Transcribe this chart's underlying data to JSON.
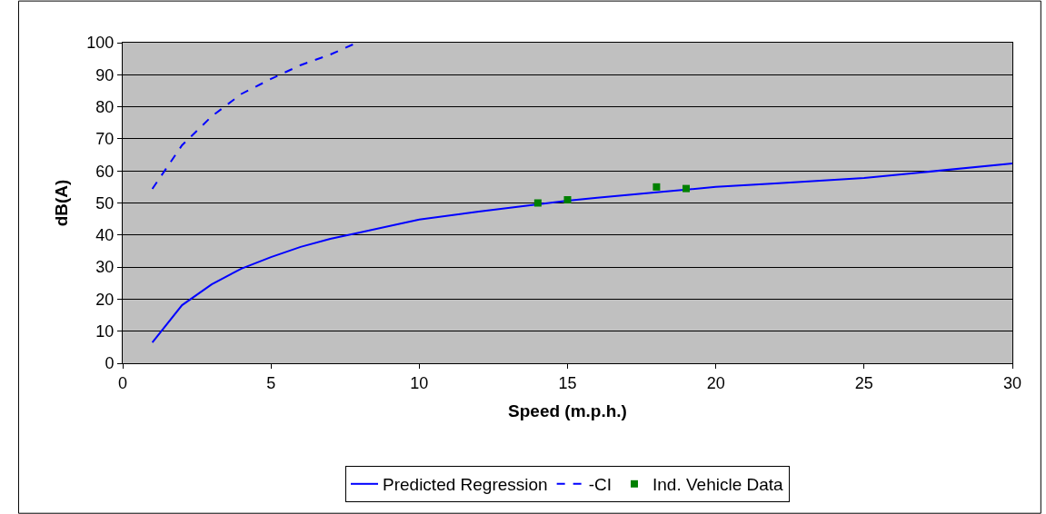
{
  "chart_data": {
    "type": "line",
    "xlabel": "Speed (m.p.h.)",
    "ylabel": "dB(A)",
    "xlim": [
      0,
      30
    ],
    "xticks": [
      0,
      5,
      10,
      15,
      20,
      25,
      30
    ],
    "ylim": [
      0,
      100
    ],
    "yticks": [
      0,
      10,
      20,
      30,
      40,
      50,
      60,
      70,
      80,
      90,
      100
    ],
    "grid": "y",
    "legend": "bottom",
    "series": [
      {
        "name": "Predicted Regression",
        "color": "#0000ff",
        "line_style": "solid",
        "marker": "none",
        "x": [
          1,
          2,
          3,
          4,
          5,
          6,
          7,
          8,
          10,
          12,
          14,
          15,
          16,
          18,
          20,
          22,
          25,
          30
        ],
        "values": [
          6.5,
          18.1,
          24.6,
          29.5,
          33.1,
          36.3,
          38.8,
          40.8,
          44.8,
          47.3,
          49.6,
          50.7,
          51.6,
          53.3,
          55,
          56.1,
          57.8,
          62.3
        ]
      },
      {
        "name": "-CI",
        "color": "#0000ff",
        "line_style": "dashed",
        "marker": "none",
        "x": [
          1,
          2,
          3,
          4,
          5,
          6,
          7,
          7.9
        ],
        "values": [
          54.4,
          68,
          77,
          84,
          88.7,
          93,
          96.3,
          100
        ]
      },
      {
        "name": "Ind. Vehicle Data",
        "type": "scatter",
        "color": "#008000",
        "marker": "square",
        "x": [
          14,
          15,
          18,
          19
        ],
        "values": [
          50,
          51,
          55,
          54.5
        ]
      }
    ]
  }
}
